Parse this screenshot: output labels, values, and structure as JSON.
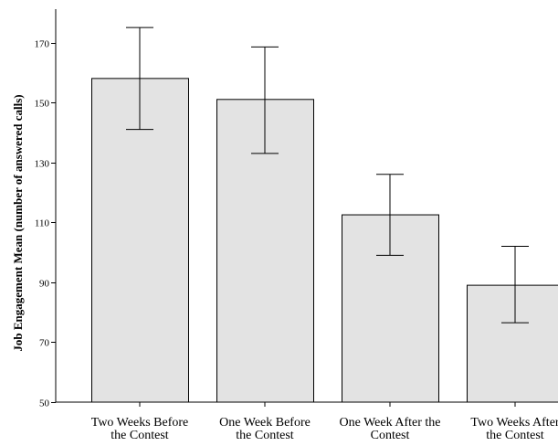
{
  "chart_data": {
    "type": "bar",
    "ylabel": "Job Engagement Mean (number of answered calls)",
    "xlabel": "",
    "ylim": [
      50,
      180
    ],
    "yticks": [
      50,
      70,
      90,
      110,
      130,
      150,
      170
    ],
    "categories": [
      [
        "Two Weeks Before",
        "the Contest"
      ],
      [
        "One Week Before",
        "the Contest"
      ],
      [
        "One Week After the",
        "Contest"
      ],
      [
        "Two Weeks After",
        "the Contest"
      ]
    ],
    "values": [
      158,
      151,
      112.5,
      89
    ],
    "error_bars": [
      {
        "low": 141,
        "high": 175
      },
      {
        "low": 133,
        "high": 168.5
      },
      {
        "low": 99,
        "high": 126
      },
      {
        "low": 76.5,
        "high": 102
      }
    ],
    "grid": false,
    "legend": "none",
    "colors": {
      "bar_fill": "#e3e3e3",
      "bar_stroke": "#000000",
      "axis": "#000000"
    }
  }
}
